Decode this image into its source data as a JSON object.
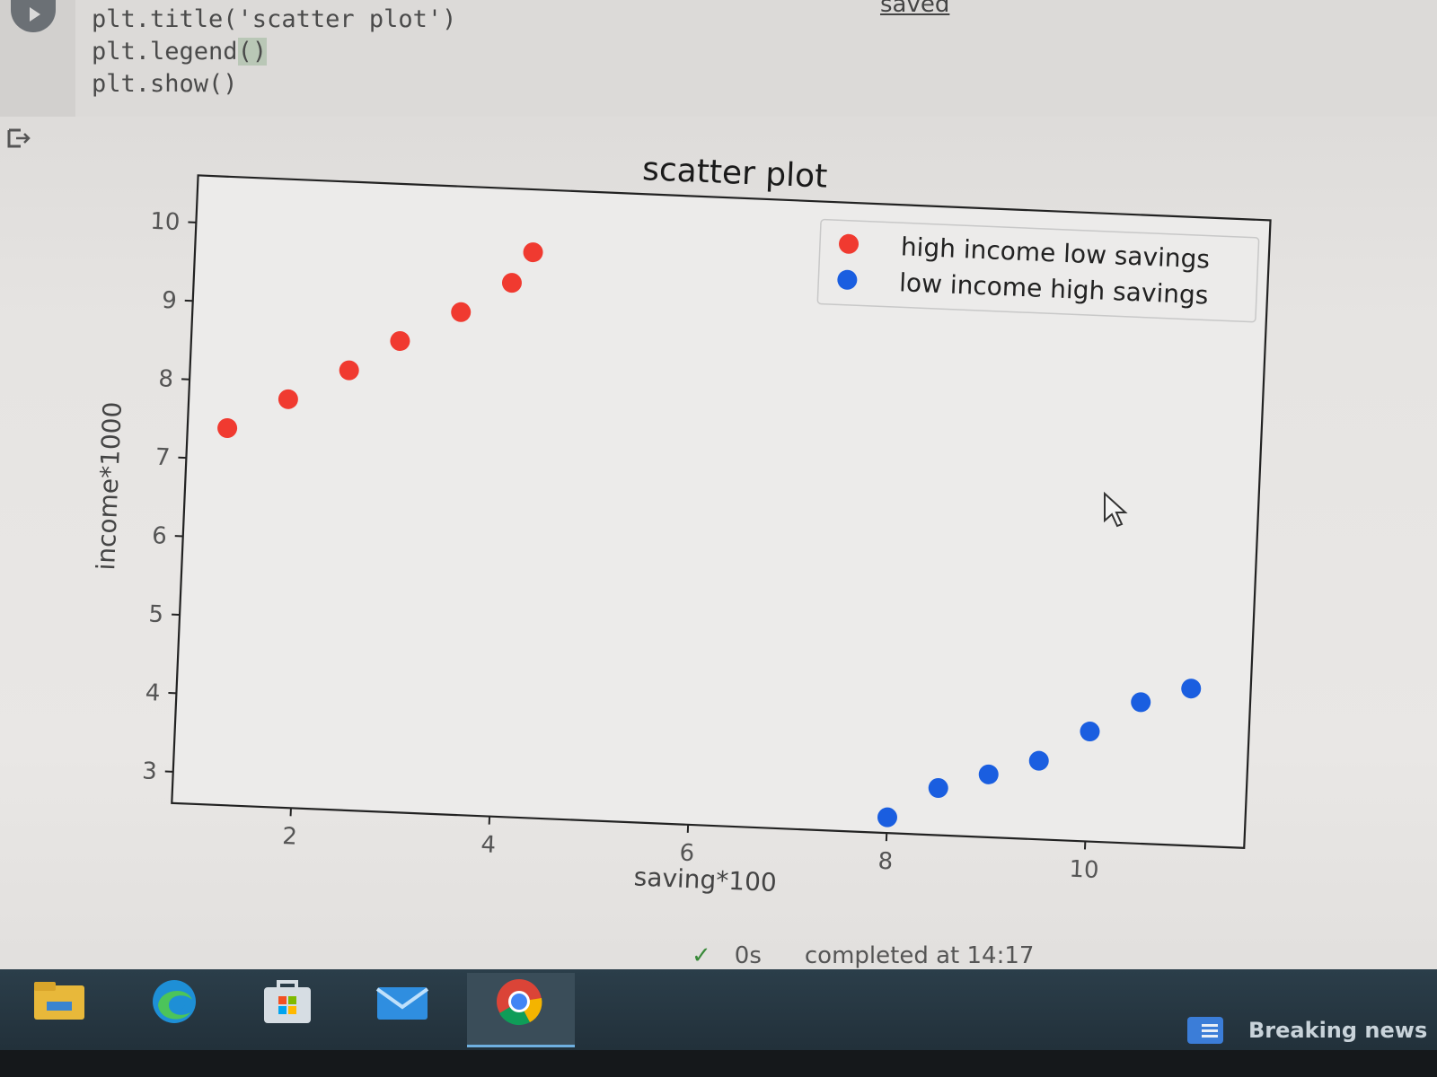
{
  "code_cell": {
    "lines": [
      "plt.title('scatter plot')",
      "plt.legend",
      "plt.show()"
    ],
    "legend_parens": "()",
    "saved_status": "saved"
  },
  "chart_data": {
    "type": "scatter",
    "title": "scatter plot",
    "xlabel": "saving*100",
    "ylabel": "income*1000",
    "xlim": [
      0.8,
      11.6
    ],
    "ylim": [
      2.6,
      10.6
    ],
    "xticks": [
      2,
      4,
      6,
      8,
      10
    ],
    "yticks": [
      3,
      4,
      5,
      6,
      7,
      8,
      9,
      10
    ],
    "grid": false,
    "legend_position": "upper right",
    "series": [
      {
        "name": "high income low savings",
        "color": "#f03a30",
        "x": [
          1.2,
          1.8,
          2.4,
          2.9,
          3.5,
          4.0,
          4.2
        ],
        "y": [
          7.4,
          7.8,
          8.2,
          8.6,
          9.0,
          9.4,
          9.8
        ]
      },
      {
        "name": "low income high savings",
        "color": "#1a5ee0",
        "x": [
          8.0,
          8.5,
          9.0,
          9.5,
          10.0,
          10.5,
          11.0
        ],
        "y": [
          2.8,
          3.2,
          3.4,
          3.6,
          4.0,
          4.4,
          4.6
        ]
      }
    ]
  },
  "exec_status": {
    "check": "✓",
    "duration": "0s",
    "text": "completed at 14:17"
  },
  "taskbar": {
    "icons": [
      "file-explorer-icon",
      "edge-icon",
      "store-icon",
      "mail-icon",
      "chrome-icon"
    ],
    "news_label": "Breaking news"
  }
}
